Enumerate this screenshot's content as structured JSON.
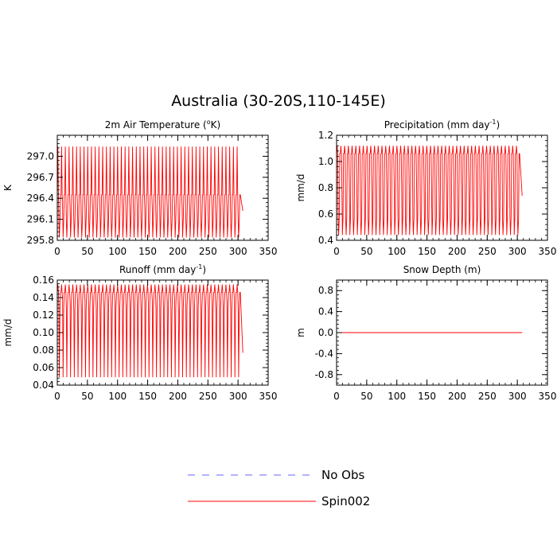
{
  "figure": {
    "title": "Australia (30-20S,110-145E)"
  },
  "legend": {
    "placement": "bottom-center",
    "entries": [
      {
        "name": "No Obs",
        "color": "#6666ff",
        "style": "dashed"
      },
      {
        "name": "Spin002",
        "color": "#ff0000",
        "style": "solid"
      }
    ]
  },
  "chart_data": [
    {
      "type": "line",
      "title": "2m Air Temperature (",
      "title_sup": "o",
      "title_end": "K)",
      "xlabel": "",
      "ylabel": "K",
      "xlim": [
        0,
        350
      ],
      "ylim": [
        295.8,
        297.3
      ],
      "xticks": [
        0,
        50,
        100,
        150,
        200,
        250,
        300,
        350
      ],
      "yticks": [
        295.8,
        296.1,
        296.4,
        296.7,
        297.0
      ],
      "yticks_labels": [
        "295.8",
        "296.1",
        "296.4",
        "296.7",
        "297.0"
      ],
      "series": [
        {
          "name": "Spin002",
          "color": "#ff0000",
          "x_start": 0,
          "x_end": 308,
          "period": 6.2,
          "high": 297.14,
          "low": 295.84,
          "band_high": 296.45,
          "band_low": 296.08,
          "end_value": 296.22
        }
      ]
    },
    {
      "type": "line",
      "title": "Precipitation (mm day",
      "title_sup": "-1",
      "title_end": ")",
      "xlabel": "",
      "ylabel": "mm/d",
      "xlim": [
        0,
        350
      ],
      "ylim": [
        0.4,
        1.2
      ],
      "xticks": [
        0,
        50,
        100,
        150,
        200,
        250,
        300,
        350
      ],
      "yticks": [
        0.4,
        0.6,
        0.8,
        1.0,
        1.2
      ],
      "yticks_labels": [
        "0.4",
        "0.6",
        "0.8",
        "1.0",
        "1.2"
      ],
      "series": [
        {
          "name": "Spin002",
          "color": "#ff0000",
          "x_start": 0,
          "x_end": 308,
          "period": 6.2,
          "high": 1.12,
          "low": 0.44,
          "band_high": 1.06,
          "band_low": 0.57,
          "end_value": 0.74
        }
      ]
    },
    {
      "type": "line",
      "title": "Runoff (mm day",
      "title_sup": "-1",
      "title_end": ")",
      "xlabel": "",
      "ylabel": "mm/d",
      "xlim": [
        0,
        350
      ],
      "ylim": [
        0.04,
        0.16
      ],
      "xticks": [
        0,
        50,
        100,
        150,
        200,
        250,
        300,
        350
      ],
      "yticks": [
        0.04,
        0.06,
        0.08,
        0.1,
        0.12,
        0.14,
        0.16
      ],
      "yticks_labels": [
        "0.04",
        "0.06",
        "0.08",
        "0.10",
        "0.12",
        "0.14",
        "0.16"
      ],
      "series": [
        {
          "name": "Spin002",
          "color": "#ff0000",
          "x_start": 0,
          "x_end": 308,
          "period": 6.2,
          "high": 0.155,
          "low": 0.049,
          "band_high": 0.146,
          "band_low": 0.127,
          "end_value": 0.077
        }
      ]
    },
    {
      "type": "line",
      "title": "Snow Depth (m)",
      "title_sup": "",
      "title_end": "",
      "xlabel": "",
      "ylabel": "m",
      "xlim": [
        0,
        350
      ],
      "ylim": [
        -1.0,
        1.0
      ],
      "xticks": [
        0,
        50,
        100,
        150,
        200,
        250,
        300,
        350
      ],
      "yticks": [
        -0.8,
        -0.4,
        0.0,
        0.4,
        0.8
      ],
      "yticks_labels": [
        "-0.8",
        "-0.4",
        "0.0",
        "0.4",
        "0.8"
      ],
      "series": [
        {
          "name": "Spin002",
          "color": "#ff0000",
          "x_start": 0,
          "x_end": 308,
          "constant": 0.0
        }
      ]
    }
  ]
}
